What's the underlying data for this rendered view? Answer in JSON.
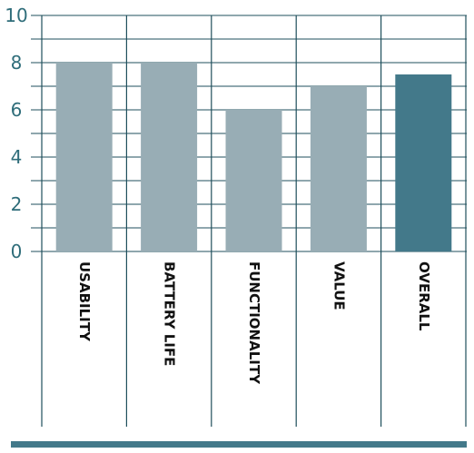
{
  "chart_data": {
    "type": "bar",
    "categories": [
      "USABILITY",
      "BATTERY LIFE",
      "FUNCTIONALITY",
      "VALUE",
      "OVERALL"
    ],
    "values": [
      8,
      8,
      6,
      7,
      7.5
    ],
    "ylim": [
      0,
      10
    ],
    "yticks": [
      "0",
      "2",
      "4",
      "6",
      "8",
      "10"
    ],
    "grid": true,
    "legend": "none",
    "colors": {
      "bar": "#98adb5",
      "highlight_bar": "#43798a",
      "grid": "#1f4f5c",
      "tick_label": "#2f6d7a",
      "footer_bar": "#43798a"
    }
  }
}
